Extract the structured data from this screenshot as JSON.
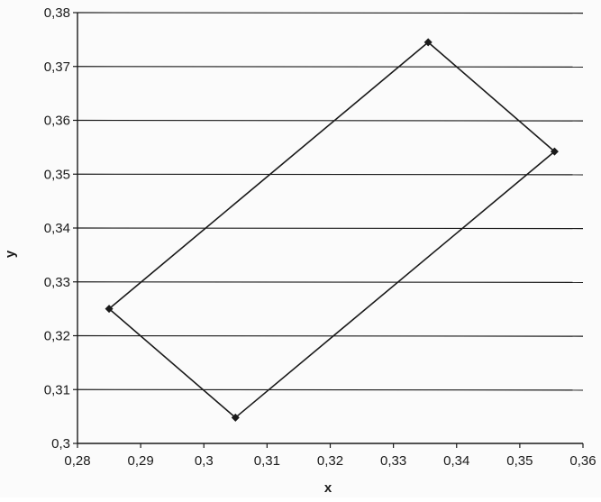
{
  "chart_data": {
    "type": "scatter",
    "title": "",
    "xlabel": "x",
    "ylabel": "y",
    "xlim": [
      0.28,
      0.36
    ],
    "ylim": [
      0.3,
      0.38
    ],
    "x_ticks": [
      0.28,
      0.29,
      0.3,
      0.31,
      0.32,
      0.33,
      0.34,
      0.35,
      0.36
    ],
    "x_tick_labels": [
      "0,28",
      "0,29",
      "0,3",
      "0,31",
      "0,32",
      "0,33",
      "0,34",
      "0,35",
      "0,36"
    ],
    "y_ticks": [
      0.3,
      0.31,
      0.32,
      0.33,
      0.34,
      0.35,
      0.36,
      0.37,
      0.38
    ],
    "y_tick_labels": [
      "0,3",
      "0,31",
      "0,32",
      "0,33",
      "0,34",
      "0,35",
      "0,36",
      "0,37",
      "0,38"
    ],
    "grid": "horizontal",
    "legend": "none",
    "series": [
      {
        "marker": "diamond",
        "line": "closed",
        "x": [
          0.285,
          0.305,
          0.3555,
          0.3355
        ],
        "y": [
          0.325,
          0.3048,
          0.3542,
          0.3745
        ]
      }
    ],
    "colors": {
      "line": "#1a1a1a",
      "grid": "#1a1a1a",
      "background": "#fbfbfb"
    }
  }
}
